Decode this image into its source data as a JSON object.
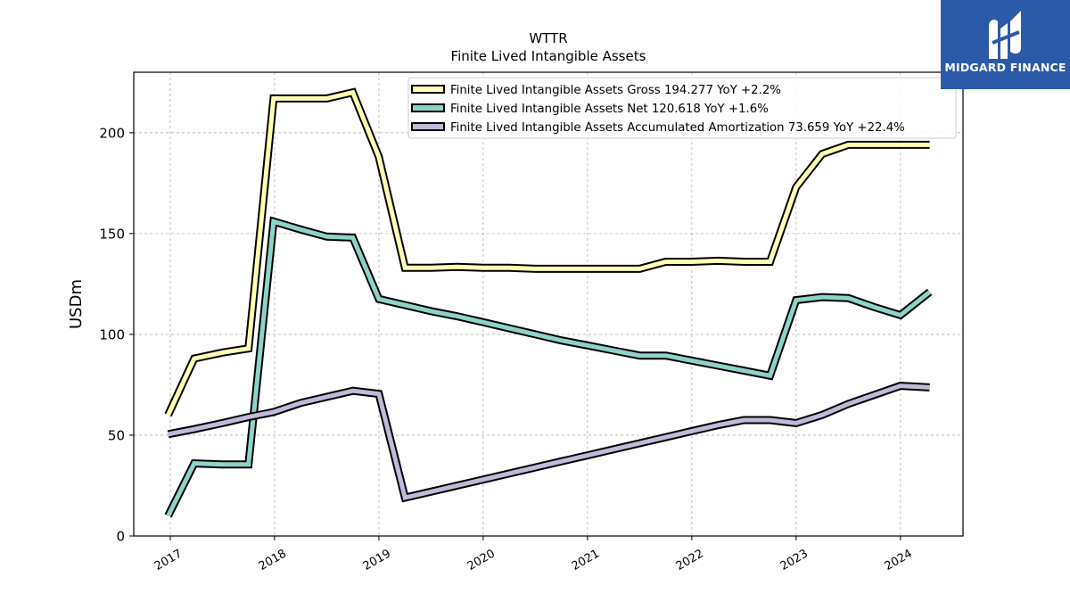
{
  "brand": {
    "name": "MIDGARD FINANCE",
    "logo_icon": "midgard-logo-icon",
    "bg_color": "#2b5aa8"
  },
  "chart_data": {
    "type": "line",
    "title": "WTTR",
    "subtitle": "Finite Lived Intangible Assets",
    "ylabel": "USDm",
    "xlabel": "",
    "ylim": [
      0,
      230
    ],
    "xlim": [
      2016.65,
      2024.6
    ],
    "yticks": [
      0,
      50,
      100,
      150,
      200
    ],
    "xticks": [
      2017,
      2018,
      2019,
      2020,
      2021,
      2022,
      2023,
      2024
    ],
    "xtick_labels": [
      "2017",
      "2018",
      "2019",
      "2020",
      "2021",
      "2022",
      "2023",
      "2024"
    ],
    "grid": true,
    "legend_position": "top-right",
    "series": [
      {
        "name": "Finite Lived Intangible Assets Gross  194.277 YoY +2.2%",
        "color": "#ffffb3",
        "points": [
          [
            2016.98,
            60
          ],
          [
            2017.23,
            88
          ],
          [
            2017.5,
            91
          ],
          [
            2017.75,
            93
          ],
          [
            2017.99,
            217
          ],
          [
            2018.25,
            217
          ],
          [
            2018.5,
            217
          ],
          [
            2018.75,
            220
          ],
          [
            2019.0,
            188
          ],
          [
            2019.25,
            133
          ],
          [
            2019.5,
            133
          ],
          [
            2019.75,
            133.5
          ],
          [
            2020.0,
            133
          ],
          [
            2020.25,
            133
          ],
          [
            2020.5,
            132.5
          ],
          [
            2020.75,
            132.5
          ],
          [
            2021.0,
            132.5
          ],
          [
            2021.25,
            132.5
          ],
          [
            2021.5,
            132.5
          ],
          [
            2021.75,
            136
          ],
          [
            2022.0,
            136
          ],
          [
            2022.25,
            136.5
          ],
          [
            2022.5,
            136
          ],
          [
            2022.75,
            136
          ],
          [
            2023.0,
            173
          ],
          [
            2023.25,
            189.5
          ],
          [
            2023.5,
            194
          ],
          [
            2023.75,
            194
          ],
          [
            2024.0,
            194
          ],
          [
            2024.28,
            194
          ]
        ]
      },
      {
        "name": "Finite Lived Intangible Assets Net  120.618 YoY +1.6%",
        "color": "#8dd3c7",
        "points": [
          [
            2016.98,
            10
          ],
          [
            2017.23,
            36
          ],
          [
            2017.5,
            35.5
          ],
          [
            2017.75,
            35.5
          ],
          [
            2017.99,
            156
          ],
          [
            2018.25,
            152
          ],
          [
            2018.5,
            148.5
          ],
          [
            2018.75,
            148
          ],
          [
            2019.0,
            117.5
          ],
          [
            2019.25,
            114.5
          ],
          [
            2019.5,
            111.5
          ],
          [
            2019.75,
            109
          ],
          [
            2020.0,
            106
          ],
          [
            2020.25,
            103
          ],
          [
            2020.5,
            100
          ],
          [
            2020.75,
            97
          ],
          [
            2021.0,
            94.5
          ],
          [
            2021.25,
            92
          ],
          [
            2021.5,
            89.5
          ],
          [
            2021.75,
            89.5
          ],
          [
            2022.0,
            87
          ],
          [
            2022.25,
            84.5
          ],
          [
            2022.5,
            82
          ],
          [
            2022.75,
            79.5
          ],
          [
            2023.0,
            117
          ],
          [
            2023.25,
            118.5
          ],
          [
            2023.5,
            118
          ],
          [
            2023.75,
            113.5
          ],
          [
            2024.0,
            109.5
          ],
          [
            2024.28,
            121
          ]
        ]
      },
      {
        "name": "Finite Lived Intangible Assets Accumulated Amortization  73.659 YoY +22.4%",
        "color": "#bebada",
        "points": [
          [
            2016.98,
            50.5
          ],
          [
            2017.23,
            53
          ],
          [
            2017.5,
            56
          ],
          [
            2017.75,
            59
          ],
          [
            2017.99,
            61.5
          ],
          [
            2018.25,
            66
          ],
          [
            2018.5,
            69
          ],
          [
            2018.75,
            72
          ],
          [
            2019.0,
            70.5
          ],
          [
            2019.25,
            19
          ],
          [
            2019.5,
            22
          ],
          [
            2019.75,
            25
          ],
          [
            2020.0,
            28
          ],
          [
            2020.25,
            31
          ],
          [
            2020.5,
            34
          ],
          [
            2020.75,
            37
          ],
          [
            2021.0,
            40
          ],
          [
            2021.25,
            43
          ],
          [
            2021.5,
            46
          ],
          [
            2021.75,
            49
          ],
          [
            2022.0,
            52
          ],
          [
            2022.25,
            55
          ],
          [
            2022.5,
            57.5
          ],
          [
            2022.75,
            57.5
          ],
          [
            2023.0,
            56
          ],
          [
            2023.25,
            60
          ],
          [
            2023.5,
            65.5
          ],
          [
            2023.75,
            70
          ],
          [
            2024.0,
            74.5
          ],
          [
            2024.28,
            73.7
          ]
        ]
      }
    ]
  }
}
